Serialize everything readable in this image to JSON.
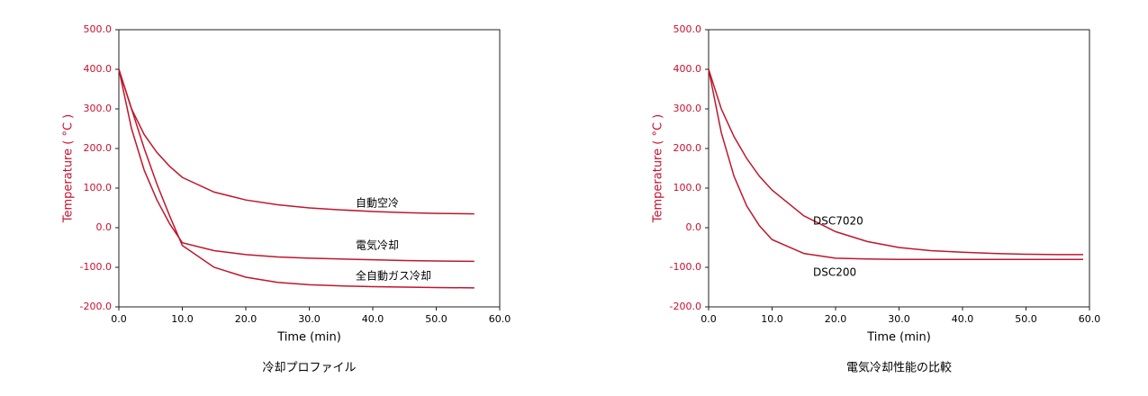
{
  "chart_data": [
    {
      "type": "line",
      "title": "冷却プロファイル",
      "xlabel": "Time (min)",
      "ylabel": "Temperature ( °C )",
      "x": [
        0,
        2,
        4,
        6,
        8,
        10,
        15,
        20,
        25,
        30,
        35,
        40,
        45,
        50,
        56
      ],
      "series": [
        {
          "name": "自動空冷",
          "color": "#c0162c",
          "values": [
            400,
            300,
            235,
            190,
            155,
            127,
            90,
            70,
            58,
            50,
            45,
            41,
            38,
            36,
            35
          ]
        },
        {
          "name": "電気冷却",
          "color": "#c0162c",
          "values": [
            400,
            250,
            145,
            70,
            10,
            -38,
            -58,
            -68,
            -74,
            -77,
            -79,
            -81,
            -83,
            -84,
            -85
          ]
        },
        {
          "name": "全自動ガス冷却",
          "color": "#c0162c",
          "values": [
            400,
            300,
            200,
            110,
            30,
            -45,
            -100,
            -125,
            -138,
            -144,
            -147,
            -149,
            -150,
            -151,
            -152
          ]
        }
      ],
      "xlim": [
        0,
        60
      ],
      "ylim": [
        -200,
        500
      ],
      "xticks": [
        {
          "value": 0,
          "label": "0.0"
        },
        {
          "value": 10,
          "label": "10.0"
        },
        {
          "value": 20,
          "label": "20.0"
        },
        {
          "value": 30,
          "label": "30.0"
        },
        {
          "value": 40,
          "label": "40.0"
        },
        {
          "value": 50,
          "label": "50.0"
        },
        {
          "value": 60,
          "label": "60.0"
        }
      ],
      "yticks": [
        {
          "value": -200,
          "label": "-200.0"
        },
        {
          "value": -100,
          "label": "-100.0"
        },
        {
          "value": 0,
          "label": "0.0"
        },
        {
          "value": 100,
          "label": "100.0"
        },
        {
          "value": 200,
          "label": "200.0"
        },
        {
          "value": 300,
          "label": "300.0"
        },
        {
          "value": 400,
          "label": "400.0"
        },
        {
          "value": 500,
          "label": "500.0"
        }
      ]
    },
    {
      "type": "line",
      "title": "電気冷却性能の比較",
      "xlabel": "Time (min)",
      "ylabel": "Temperature ( °C )",
      "x": [
        0,
        2,
        4,
        6,
        8,
        10,
        15,
        20,
        25,
        30,
        35,
        40,
        45,
        50,
        55,
        59
      ],
      "series": [
        {
          "name": "DSC7020",
          "color": "#c0162c",
          "values": [
            400,
            300,
            230,
            175,
            130,
            95,
            30,
            -10,
            -35,
            -50,
            -58,
            -62,
            -65,
            -67,
            -68,
            -68
          ]
        },
        {
          "name": "DSC200",
          "color": "#c0162c",
          "values": [
            400,
            240,
            130,
            55,
            5,
            -30,
            -65,
            -77,
            -79,
            -80,
            -80,
            -80,
            -80,
            -80,
            -80,
            -80
          ]
        }
      ],
      "xlim": [
        0,
        60
      ],
      "ylim": [
        -200,
        500
      ],
      "xticks": [
        {
          "value": 0,
          "label": "0.0"
        },
        {
          "value": 10,
          "label": "10.0"
        },
        {
          "value": 20,
          "label": "20.0"
        },
        {
          "value": 30,
          "label": "30.0"
        },
        {
          "value": 40,
          "label": "40.0"
        },
        {
          "value": 50,
          "label": "50.0"
        },
        {
          "value": 60,
          "label": "60.0"
        }
      ],
      "yticks": [
        {
          "value": -200,
          "label": "-200.0"
        },
        {
          "value": -100,
          "label": "-100.0"
        },
        {
          "value": 0,
          "label": "0.0"
        },
        {
          "value": 100,
          "label": "100.0"
        },
        {
          "value": 200,
          "label": "200.0"
        },
        {
          "value": 300,
          "label": "300.0"
        },
        {
          "value": 400,
          "label": "400.0"
        },
        {
          "value": 500,
          "label": "500.0"
        }
      ]
    }
  ]
}
